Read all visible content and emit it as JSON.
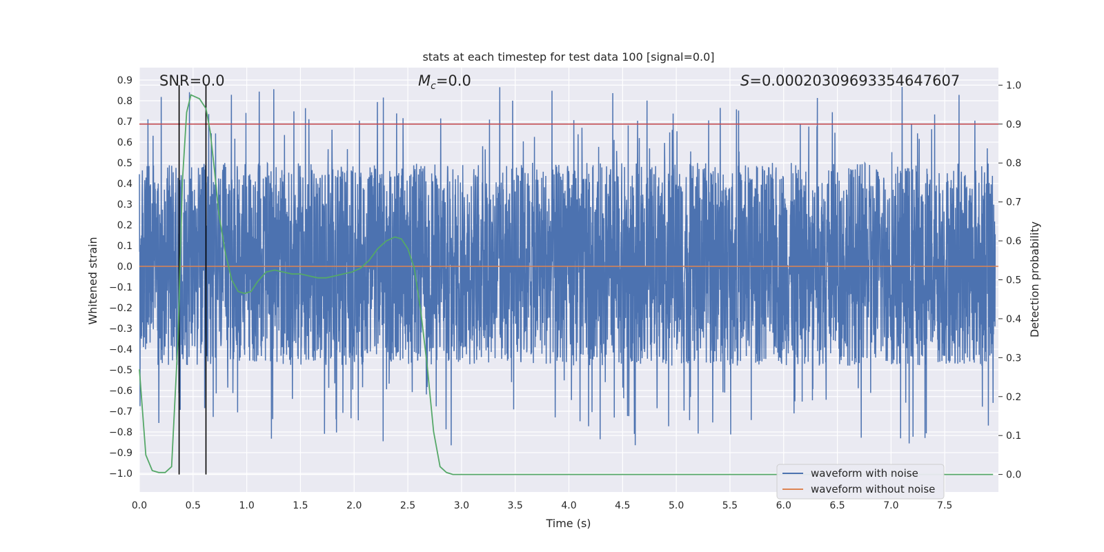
{
  "chart_data": {
    "type": "line",
    "title": "stats at each timestep for test data 100 [signal=0.0]",
    "xlabel": "Time (s)",
    "ylabel": "Whitened strain",
    "ylabel_right": "Detection probability",
    "xlim": [
      0.0,
      8.0
    ],
    "ylim": [
      -1.09,
      0.96
    ],
    "ylim_right": [
      -0.045,
      1.045
    ],
    "x_ticks": [
      0.0,
      0.5,
      1.0,
      1.5,
      2.0,
      2.5,
      3.0,
      3.5,
      4.0,
      4.5,
      5.0,
      5.5,
      6.0,
      6.5,
      7.0,
      7.5
    ],
    "x_tick_labels": [
      "0.0",
      "0.5",
      "1.0",
      "1.5",
      "2.0",
      "2.5",
      "3.0",
      "3.5",
      "4.0",
      "4.5",
      "5.0",
      "5.5",
      "6.0",
      "6.5",
      "7.0",
      "7.5"
    ],
    "y_ticks": [
      0.9,
      0.8,
      0.7,
      0.6,
      0.5,
      0.4,
      0.3,
      0.2,
      0.1,
      0.0,
      -0.1,
      -0.2,
      -0.3,
      -0.4,
      -0.5,
      -0.6,
      -0.7,
      -0.8,
      -0.9,
      -1.0
    ],
    "y_tick_labels": [
      "0.9",
      "0.8",
      "0.7",
      "0.6",
      "0.5",
      "0.4",
      "0.3",
      "0.2",
      "0.1",
      "0.0",
      "−0.1",
      "−0.2",
      "−0.3",
      "−0.4",
      "−0.5",
      "−0.6",
      "−0.7",
      "−0.8",
      "−0.9",
      "−1.0"
    ],
    "y_ticks_right": [
      1.0,
      0.9,
      0.8,
      0.7,
      0.6,
      0.5,
      0.4,
      0.3,
      0.2,
      0.1,
      0.0
    ],
    "y_tick_labels_right": [
      "1.0",
      "0.9",
      "0.8",
      "0.7",
      "0.6",
      "0.5",
      "0.4",
      "0.3",
      "0.2",
      "0.1",
      "0.0"
    ],
    "annotations": {
      "snr": "SNR=0.0",
      "mc_symbol": "M",
      "mc_sub": "c",
      "mc_value": "=0.0",
      "s_symbol": "S",
      "s_value": "=0.0002030969335464760​7"
    },
    "threshold": {
      "value": 0.9,
      "axis": "right",
      "color": "#c44e52"
    },
    "vertical_markers": [
      0.37,
      0.62
    ],
    "series": [
      {
        "name": "waveform with noise",
        "color": "#4c72b0",
        "style": "noise",
        "amplitude_band": [
          -0.48,
          0.5
        ],
        "peak_range": [
          -1.0,
          0.87
        ],
        "points": 4000
      },
      {
        "name": "waveform without noise",
        "color": "#dd8452",
        "x": [
          0.0,
          8.0
        ],
        "values": [
          0.0,
          0.0
        ]
      },
      {
        "name": "detection probability",
        "axis": "right",
        "color": "#55a868",
        "x": [
          0.0,
          0.06,
          0.12,
          0.18,
          0.24,
          0.3,
          0.36,
          0.4,
          0.44,
          0.48,
          0.52,
          0.56,
          0.62,
          0.66,
          0.7,
          0.74,
          0.8,
          0.86,
          0.92,
          0.98,
          1.04,
          1.1,
          1.18,
          1.26,
          1.34,
          1.42,
          1.5,
          1.58,
          1.66,
          1.74,
          1.82,
          1.9,
          1.98,
          2.06,
          2.14,
          2.22,
          2.3,
          2.38,
          2.44,
          2.5,
          2.56,
          2.62,
          2.68,
          2.74,
          2.8,
          2.86,
          2.92,
          3.0,
          3.5,
          4.0,
          4.5,
          5.0,
          5.5,
          6.0,
          6.5,
          7.0,
          7.5,
          7.95
        ],
        "values": [
          0.27,
          0.05,
          0.01,
          0.005,
          0.005,
          0.02,
          0.35,
          0.75,
          0.93,
          0.975,
          0.97,
          0.965,
          0.94,
          0.88,
          0.78,
          0.67,
          0.57,
          0.5,
          0.47,
          0.465,
          0.47,
          0.495,
          0.52,
          0.525,
          0.52,
          0.515,
          0.515,
          0.51,
          0.505,
          0.505,
          0.51,
          0.515,
          0.52,
          0.53,
          0.55,
          0.58,
          0.6,
          0.61,
          0.605,
          0.58,
          0.53,
          0.42,
          0.28,
          0.11,
          0.02,
          0.005,
          0.0,
          0.0,
          0.0,
          0.0,
          0.0,
          0.0,
          0.0,
          0.0,
          0.0,
          0.0,
          0.0,
          0.0
        ]
      }
    ],
    "legend": {
      "position": "lower-right",
      "entries": [
        {
          "label": "waveform with noise",
          "color": "#4c72b0"
        },
        {
          "label": "waveform without noise",
          "color": "#dd8452"
        }
      ]
    }
  }
}
